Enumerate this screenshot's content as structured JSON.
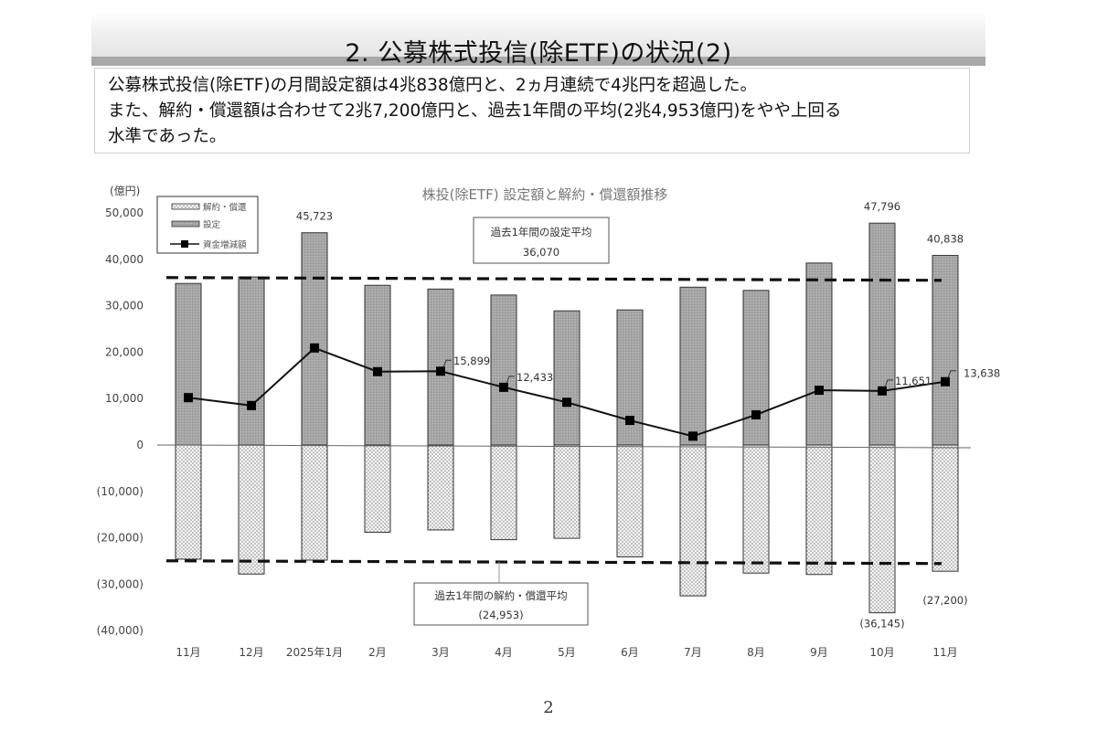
{
  "page": {
    "title": "2. 公募株式投信(除ETF)の状況(2)",
    "summary_lines": [
      "公募株式投信(除ETF)の月間設定額は4兆838億円と、2ヵ月連続で4兆円を超過した。",
      "また、解約・償還額は合わせて2兆7,200億円と、過去1年間の平均(2兆4,953億円)をやや上回る",
      "水準であった。"
    ],
    "page_number": "2"
  },
  "chart_data": {
    "type": "bar",
    "title": "株投(除ETF) 設定額と解約・償還額推移",
    "ylabel": "(億円)",
    "xlabel": "",
    "ylim": [
      -40000,
      50000
    ],
    "yticks": [
      50000,
      40000,
      30000,
      20000,
      10000,
      0,
      -10000,
      -20000,
      -30000,
      -40000
    ],
    "ytick_labels": [
      "50,000",
      "40,000",
      "30,000",
      "20,000",
      "10,000",
      "0",
      "(10,000)",
      "(20,000)",
      "(30,000)",
      "(40,000)"
    ],
    "grid": false,
    "legend_position": "top-left",
    "categories": [
      "11月",
      "12月",
      "2025年1月",
      "2月",
      "3月",
      "4月",
      "5月",
      "6月",
      "7月",
      "8月",
      "9月",
      "10月",
      "11月"
    ],
    "series": [
      {
        "name": "解約・償還",
        "kind": "bar",
        "pattern": "dotted",
        "values": [
          -24600,
          -27800,
          -24800,
          -18800,
          -18300,
          -20400,
          -20100,
          -24100,
          -32500,
          -27600,
          -27900,
          -36145,
          -27200
        ]
      },
      {
        "name": "設定",
        "kind": "bar",
        "pattern": "gray",
        "values": [
          34800,
          36200,
          45723,
          34400,
          33600,
          32300,
          28900,
          29100,
          34000,
          33300,
          39200,
          47796,
          40838
        ]
      },
      {
        "name": "資金増減額",
        "kind": "line",
        "marker": "square",
        "values": [
          10200,
          8500,
          20900,
          15800,
          15899,
          12433,
          9200,
          5300,
          1900,
          6500,
          11800,
          11651,
          13638
        ]
      }
    ],
    "data_labels": [
      {
        "series": "設定",
        "index": 2,
        "text": "45,723"
      },
      {
        "series": "設定",
        "index": 11,
        "text": "47,796"
      },
      {
        "series": "設定",
        "index": 12,
        "text": "40,838"
      },
      {
        "series": "資金増減額",
        "index": 4,
        "text": "15,899"
      },
      {
        "series": "資金増減額",
        "index": 5,
        "text": "12,433"
      },
      {
        "series": "資金増減額",
        "index": 11,
        "text": "11,651"
      },
      {
        "series": "資金増減額",
        "index": 12,
        "text": "13,638"
      },
      {
        "series": "解約・償還",
        "index": 11,
        "text": "(36,145)"
      },
      {
        "series": "解約・償還",
        "index": 12,
        "text": "(27,200)"
      }
    ],
    "reference_lines": [
      {
        "name": "過去1年間の設定平均",
        "value": 36070,
        "label_title": "過去1年間の設定平均",
        "label_value": "36,070",
        "style": "dashed"
      },
      {
        "name": "過去1年間の解約・償還平均",
        "value": -24953,
        "label_title": "過去1年間の解約・償還平均",
        "label_value": "(24,953)",
        "style": "dashed"
      }
    ]
  }
}
